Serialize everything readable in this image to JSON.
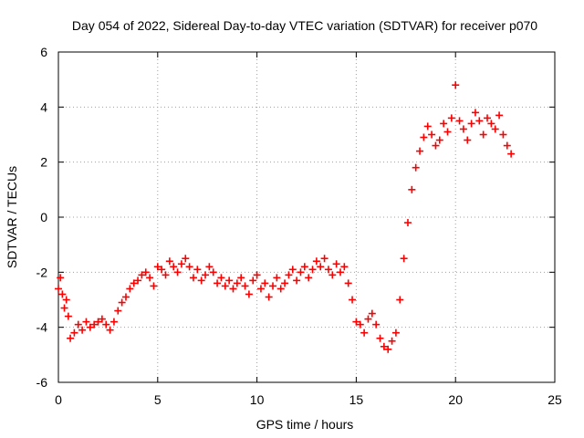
{
  "chart_data": {
    "type": "scatter",
    "title": "Day 054 of 2022, Sidereal Day-to-day VTEC variation (SDTVAR) for receiver p070",
    "xlabel": "GPS time / hours",
    "ylabel": "SDTVAR / TECUs",
    "xlim": [
      0,
      25
    ],
    "ylim": [
      -6,
      6
    ],
    "xticks": [
      0,
      5,
      10,
      15,
      20,
      25
    ],
    "yticks": [
      -6,
      -4,
      -2,
      0,
      2,
      4,
      6
    ],
    "xtick_labels": [
      "0",
      "5",
      "10",
      "15",
      "20",
      "25"
    ],
    "ytick_labels": [
      "-6",
      "-4",
      "-2",
      "0",
      "2",
      "4",
      "6"
    ],
    "grid": true,
    "marker": "+",
    "color": "#ff0000",
    "series": [
      {
        "name": "SDTVAR",
        "x": [
          0.0,
          0.1,
          0.2,
          0.3,
          0.4,
          0.5,
          0.6,
          0.8,
          1.0,
          1.2,
          1.4,
          1.6,
          1.8,
          2.0,
          2.2,
          2.4,
          2.6,
          2.8,
          3.0,
          3.2,
          3.4,
          3.6,
          3.8,
          4.0,
          4.2,
          4.4,
          4.6,
          4.8,
          5.0,
          5.2,
          5.4,
          5.6,
          5.8,
          6.0,
          6.2,
          6.4,
          6.6,
          6.8,
          7.0,
          7.2,
          7.4,
          7.6,
          7.8,
          8.0,
          8.2,
          8.4,
          8.6,
          8.8,
          9.0,
          9.2,
          9.4,
          9.6,
          9.8,
          10.0,
          10.2,
          10.4,
          10.6,
          10.8,
          11.0,
          11.2,
          11.4,
          11.6,
          11.8,
          12.0,
          12.2,
          12.4,
          12.6,
          12.8,
          13.0,
          13.2,
          13.4,
          13.6,
          13.8,
          14.0,
          14.2,
          14.4,
          14.6,
          14.8,
          15.0,
          15.2,
          15.4,
          15.6,
          15.8,
          16.0,
          16.2,
          16.4,
          16.6,
          16.8,
          17.0,
          17.2,
          17.4,
          17.6,
          17.8,
          18.0,
          18.2,
          18.4,
          18.6,
          18.8,
          19.0,
          19.2,
          19.4,
          19.6,
          19.8,
          20.0,
          20.2,
          20.4,
          20.6,
          20.8,
          21.0,
          21.2,
          21.4,
          21.6,
          21.8,
          22.0,
          22.2,
          22.4,
          22.6,
          22.8
        ],
        "y": [
          -2.6,
          -2.2,
          -2.8,
          -3.3,
          -3.0,
          -3.6,
          -4.4,
          -4.2,
          -3.9,
          -4.1,
          -3.8,
          -4.0,
          -3.9,
          -3.8,
          -3.7,
          -3.9,
          -4.1,
          -3.8,
          -3.4,
          -3.1,
          -2.9,
          -2.6,
          -2.4,
          -2.3,
          -2.1,
          -2.0,
          -2.2,
          -2.5,
          -1.8,
          -1.9,
          -2.1,
          -1.6,
          -1.8,
          -2.0,
          -1.7,
          -1.5,
          -1.8,
          -2.2,
          -1.9,
          -2.3,
          -2.1,
          -1.8,
          -2.0,
          -2.4,
          -2.2,
          -2.5,
          -2.3,
          -2.6,
          -2.4,
          -2.2,
          -2.5,
          -2.8,
          -2.3,
          -2.1,
          -2.6,
          -2.4,
          -2.9,
          -2.5,
          -2.2,
          -2.6,
          -2.4,
          -2.1,
          -1.9,
          -2.3,
          -2.0,
          -1.8,
          -2.2,
          -1.9,
          -1.6,
          -1.8,
          -1.5,
          -1.9,
          -2.1,
          -1.7,
          -2.0,
          -1.8,
          -2.4,
          -3.0,
          -3.8,
          -3.9,
          -4.2,
          -3.7,
          -3.5,
          -3.9,
          -4.4,
          -4.7,
          -4.8,
          -4.5,
          -4.2,
          -3.0,
          -1.5,
          -0.2,
          1.0,
          1.8,
          2.4,
          2.9,
          3.3,
          3.0,
          2.6,
          2.8,
          3.4,
          3.1,
          3.6,
          4.8,
          3.5,
          3.2,
          2.8,
          3.4,
          3.8,
          3.5,
          3.0,
          3.6,
          3.4,
          3.2,
          3.7,
          3.0,
          2.6,
          2.3
        ]
      }
    ]
  }
}
